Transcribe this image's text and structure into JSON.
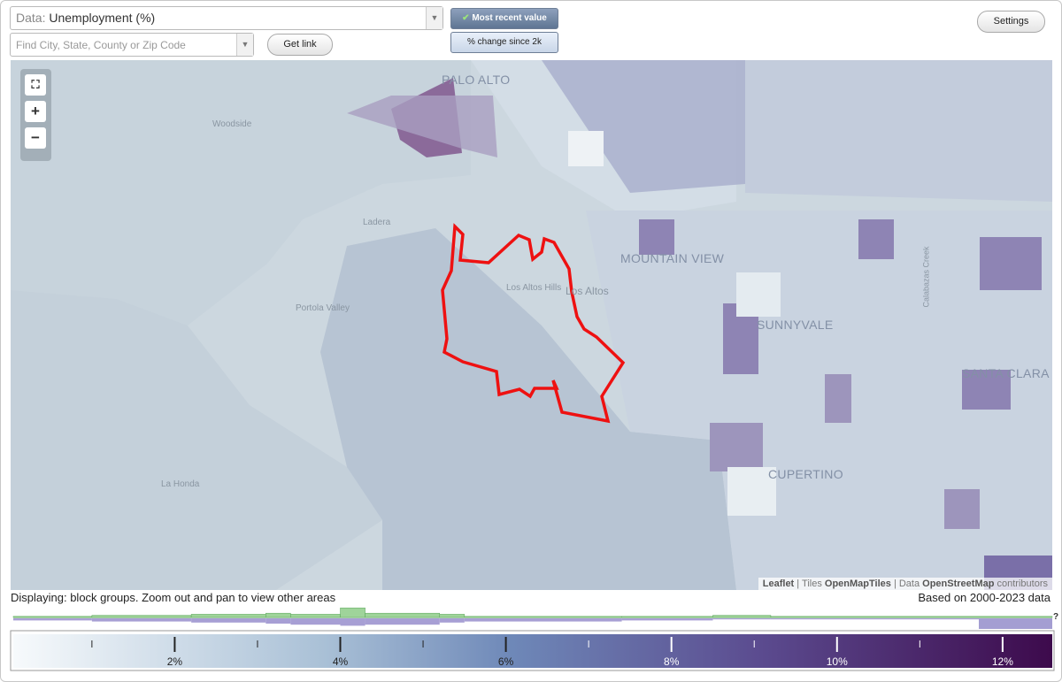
{
  "toolbar": {
    "data_prefix": "Data:",
    "data_value": "Unemployment (%)",
    "search_placeholder": "Find City, State, County or Zip Code",
    "get_link": "Get link",
    "mode_recent": "Most recent value",
    "mode_change": "% change since 2k",
    "settings": "Settings"
  },
  "map": {
    "zoom_in": "+",
    "zoom_out": "−",
    "labels": [
      "PALO ALTO",
      "Woodside",
      "Ladera",
      "Portola Valley",
      "Los Altos Hills",
      "Los Altos",
      "MOUNTAIN VIEW",
      "SUNNYVALE",
      "SANTA CLARA",
      "CUPERTINO",
      "La Honda",
      "Calabazas Creek"
    ],
    "attribution": {
      "leaflet": "Leaflet",
      "tiles": "| Tiles",
      "tiles_source": "OpenMapTiles",
      "data": "| Data",
      "data_source": "OpenStreetMap",
      "contributors": "contributors"
    }
  },
  "status": {
    "displaying": "Displaying: block groups. Zoom out and pan to view other areas",
    "based_on": "Based on 2000-2023 data",
    "help": "?"
  },
  "legend": {
    "range": [
      0.05,
      12.6
    ],
    "ticks": [
      {
        "value": 2,
        "label": "2%"
      },
      {
        "value": 4,
        "label": "4%"
      },
      {
        "value": 6,
        "label": "6%"
      },
      {
        "value": 8,
        "label": "8%"
      },
      {
        "value": 10,
        "label": "10%"
      },
      {
        "value": 12,
        "label": "12%"
      }
    ],
    "minor_ticks": [
      1,
      3,
      5,
      7,
      9,
      11
    ],
    "histogram": {
      "bins": [
        0.05,
        1,
        2.2,
        3.1,
        3.4,
        4,
        4.3,
        5.2,
        5.5,
        7.4,
        8.5,
        9.2,
        12.6
      ],
      "green": [
        1,
        2,
        3,
        4,
        3,
        9,
        4,
        3,
        1,
        1,
        2,
        1
      ],
      "purple": [
        2,
        3,
        4,
        5,
        6,
        7,
        6,
        4,
        3,
        2,
        1,
        1
      ]
    }
  }
}
